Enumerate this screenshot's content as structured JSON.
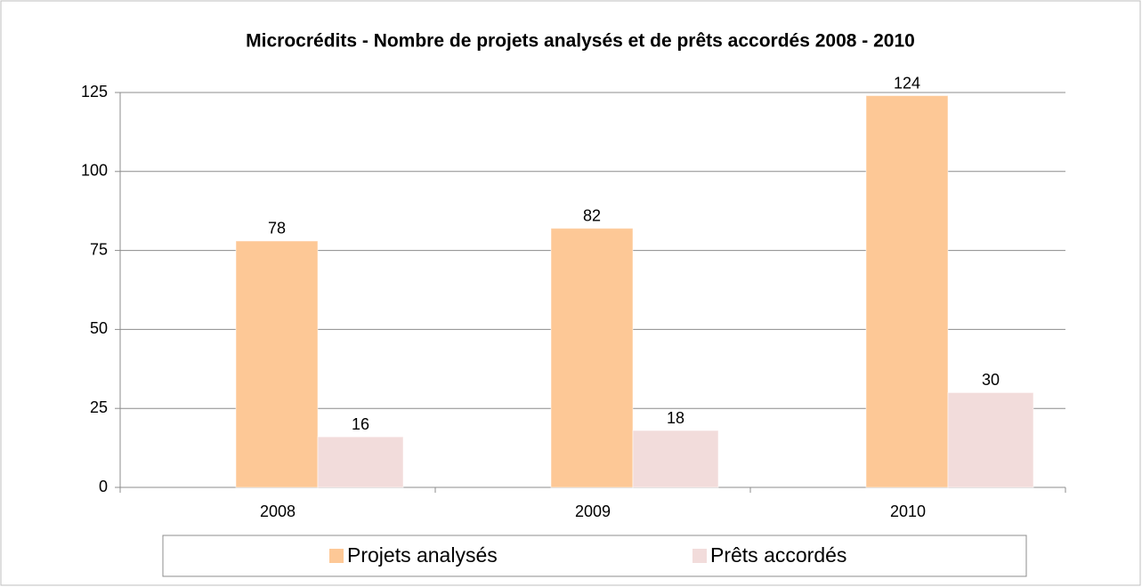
{
  "chart_data": {
    "type": "bar",
    "title": "Microcrédits - Nombre de projets analysés et de prêts accordés 2008 - 2010",
    "categories": [
      "2008",
      "2009",
      "2010"
    ],
    "series": [
      {
        "name": "Projets analysés",
        "color": "#fdc896",
        "values": [
          78,
          82,
          124
        ]
      },
      {
        "name": "Prêts accordés",
        "color": "#f2dcdb",
        "values": [
          16,
          18,
          30
        ]
      }
    ],
    "ylim": [
      0,
      125
    ],
    "yticks": [
      0,
      25,
      50,
      75,
      100,
      125
    ],
    "grid": true,
    "legend": "bottom"
  }
}
